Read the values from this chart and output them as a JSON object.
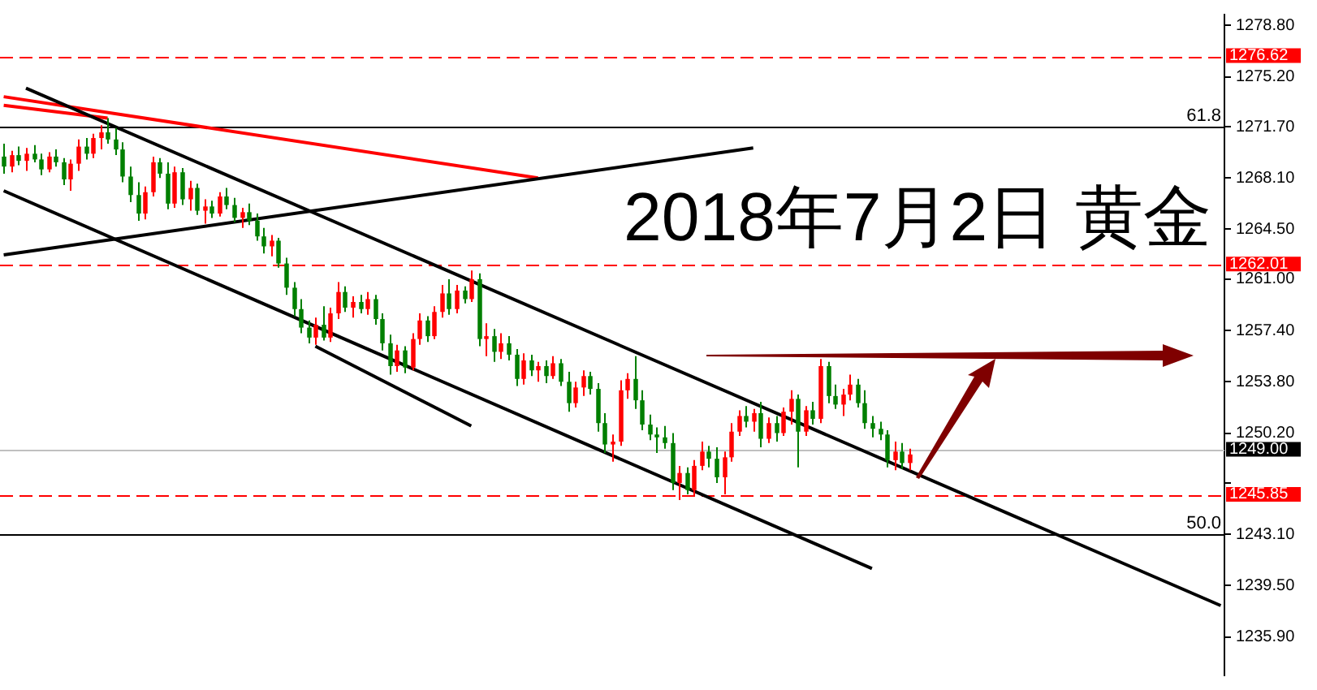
{
  "chart_data": {
    "type": "candlestick",
    "categories": [
      null,
      null,
      null,
      null,
      null,
      null,
      null,
      null,
      null,
      null,
      null,
      null,
      null,
      null,
      null,
      null,
      null,
      null,
      null,
      null,
      null,
      null,
      null,
      null,
      null,
      null,
      null,
      null,
      null,
      null,
      null,
      null,
      null,
      null,
      null,
      null,
      null,
      null,
      null,
      null,
      null,
      null,
      null,
      null,
      null,
      null,
      null,
      null,
      null,
      null,
      null,
      null,
      null,
      null,
      null,
      null,
      null,
      null,
      null,
      null,
      null,
      null,
      null,
      null,
      null,
      null,
      null,
      null,
      null,
      null,
      null,
      null,
      null,
      null,
      null,
      null,
      null,
      null,
      null,
      null,
      null,
      null,
      null,
      null,
      null,
      null,
      null,
      null,
      null,
      null,
      null,
      null,
      null,
      null,
      null,
      null,
      null,
      null,
      null,
      null,
      null,
      null,
      null,
      null,
      null,
      null,
      null,
      null,
      null,
      null,
      null,
      null,
      null,
      null,
      null,
      null,
      null,
      null,
      null,
      null,
      null,
      null,
      null,
      null,
      null,
      null,
      null,
      null,
      null,
      null,
      null,
      null,
      null,
      null,
      null,
      null,
      null,
      null,
      null,
      null,
      null,
      null,
      null,
      null,
      null,
      null,
      null,
      null,
      null,
      null,
      null,
      null,
      null,
      null,
      null,
      null,
      null,
      null,
      null,
      null,
      null,
      null,
      null,
      null,
      null
    ],
    "ohlc": [
      [
        1269.6,
        1270.5,
        1268.4,
        1268.9
      ],
      [
        1268.9,
        1270.0,
        1268.5,
        1269.7
      ],
      [
        1269.7,
        1270.3,
        1269.0,
        1269.3
      ],
      [
        1269.3,
        1270.2,
        1268.6,
        1269.8
      ],
      [
        1269.8,
        1270.4,
        1269.2,
        1269.4
      ],
      [
        1269.4,
        1269.8,
        1268.3,
        1268.7
      ],
      [
        1268.7,
        1269.9,
        1268.5,
        1269.6
      ],
      [
        1269.6,
        1270.1,
        1268.9,
        1269.2
      ],
      [
        1269.2,
        1269.5,
        1267.6,
        1268.0
      ],
      [
        1268.0,
        1269.4,
        1267.2,
        1269.1
      ],
      [
        1269.1,
        1270.8,
        1268.6,
        1270.3
      ],
      [
        1270.3,
        1270.9,
        1269.4,
        1269.8
      ],
      [
        1269.8,
        1271.2,
        1269.5,
        1270.9
      ],
      [
        1270.9,
        1271.8,
        1270.1,
        1271.3
      ],
      [
        1271.3,
        1272.3,
        1270.5,
        1270.8
      ],
      [
        1270.8,
        1271.6,
        1269.7,
        1270.1
      ],
      [
        1270.1,
        1270.6,
        1267.8,
        1268.2
      ],
      [
        1268.2,
        1268.9,
        1266.4,
        1266.9
      ],
      [
        1266.9,
        1267.8,
        1265.1,
        1265.6
      ],
      [
        1265.6,
        1267.5,
        1265.2,
        1267.1
      ],
      [
        1267.1,
        1269.6,
        1266.8,
        1269.2
      ],
      [
        1269.2,
        1269.5,
        1268.1,
        1268.4
      ],
      [
        1268.4,
        1269.2,
        1265.9,
        1266.3
      ],
      [
        1266.3,
        1268.9,
        1266.0,
        1268.5
      ],
      [
        1268.5,
        1268.8,
        1266.2,
        1266.6
      ],
      [
        1266.6,
        1267.9,
        1265.8,
        1267.4
      ],
      [
        1267.4,
        1267.7,
        1265.5,
        1265.8
      ],
      [
        1265.8,
        1266.6,
        1264.9,
        1266.1
      ],
      [
        1266.1,
        1266.5,
        1265.3,
        1265.6
      ],
      [
        1265.6,
        1267.1,
        1265.4,
        1266.8
      ],
      [
        1266.8,
        1267.4,
        1265.9,
        1266.2
      ],
      [
        1266.2,
        1266.7,
        1265.0,
        1265.3
      ],
      [
        1265.3,
        1266.0,
        1264.6,
        1265.7
      ],
      [
        1265.7,
        1266.3,
        1264.8,
        1265.1
      ],
      [
        1265.1,
        1265.6,
        1263.7,
        1264.0
      ],
      [
        1264.0,
        1264.6,
        1262.8,
        1263.3
      ],
      [
        1263.3,
        1264.1,
        1262.6,
        1263.7
      ],
      [
        1263.7,
        1263.9,
        1261.8,
        1262.1
      ],
      [
        1262.1,
        1262.5,
        1259.9,
        1260.4
      ],
      [
        1260.4,
        1260.8,
        1258.4,
        1258.9
      ],
      [
        1258.9,
        1259.6,
        1257.2,
        1257.6
      ],
      [
        1257.6,
        1258.1,
        1256.5,
        1256.9
      ],
      [
        1256.9,
        1258.3,
        1256.4,
        1257.8
      ],
      [
        1257.8,
        1259.1,
        1256.7,
        1256.9
      ],
      [
        1256.9,
        1259.0,
        1256.6,
        1258.6
      ],
      [
        1258.6,
        1260.8,
        1258.2,
        1260.1
      ],
      [
        1260.1,
        1260.5,
        1258.7,
        1259.0
      ],
      [
        1259.0,
        1259.8,
        1258.3,
        1259.4
      ],
      [
        1259.4,
        1259.9,
        1258.6,
        1258.9
      ],
      [
        1258.9,
        1260.1,
        1258.5,
        1259.6
      ],
      [
        1259.6,
        1259.9,
        1257.8,
        1258.2
      ],
      [
        1258.2,
        1258.6,
        1256.0,
        1256.5
      ],
      [
        1256.5,
        1257.1,
        1254.3,
        1254.9
      ],
      [
        1254.9,
        1256.4,
        1254.5,
        1256.0
      ],
      [
        1256.0,
        1256.3,
        1254.4,
        1254.8
      ],
      [
        1254.8,
        1257.2,
        1254.6,
        1256.8
      ],
      [
        1256.8,
        1258.6,
        1256.4,
        1258.1
      ],
      [
        1258.1,
        1258.4,
        1256.6,
        1257.0
      ],
      [
        1257.0,
        1259.1,
        1256.8,
        1258.7
      ],
      [
        1258.7,
        1260.6,
        1258.3,
        1260.0
      ],
      [
        1260.0,
        1261.0,
        1258.5,
        1258.9
      ],
      [
        1258.9,
        1260.6,
        1258.6,
        1260.2
      ],
      [
        1260.2,
        1260.5,
        1259.3,
        1259.6
      ],
      [
        1259.6,
        1261.6,
        1259.4,
        1261.0
      ],
      [
        1261.0,
        1261.4,
        1256.3,
        1256.8
      ],
      [
        1256.8,
        1257.9,
        1255.6,
        1257.0
      ],
      [
        1257.0,
        1257.5,
        1255.2,
        1255.9
      ],
      [
        1255.9,
        1257.2,
        1255.4,
        1256.5
      ],
      [
        1256.5,
        1257.0,
        1255.3,
        1255.7
      ],
      [
        1255.7,
        1256.1,
        1253.5,
        1254.0
      ],
      [
        1254.0,
        1255.8,
        1253.6,
        1255.3
      ],
      [
        1255.3,
        1255.7,
        1254.2,
        1254.6
      ],
      [
        1254.6,
        1255.2,
        1253.8,
        1254.9
      ],
      [
        1254.9,
        1255.3,
        1253.7,
        1254.2
      ],
      [
        1254.2,
        1255.6,
        1254.0,
        1255.1
      ],
      [
        1255.1,
        1255.4,
        1253.5,
        1253.8
      ],
      [
        1253.8,
        1254.5,
        1251.7,
        1252.3
      ],
      [
        1252.3,
        1253.8,
        1252.0,
        1253.4
      ],
      [
        1253.4,
        1254.6,
        1252.8,
        1254.2
      ],
      [
        1254.2,
        1254.5,
        1252.9,
        1253.3
      ],
      [
        1253.3,
        1253.7,
        1250.3,
        1250.9
      ],
      [
        1250.9,
        1251.6,
        1248.8,
        1249.4
      ],
      [
        1249.4,
        1250.1,
        1248.2,
        1249.6
      ],
      [
        1249.6,
        1253.9,
        1249.3,
        1253.2
      ],
      [
        1253.2,
        1254.4,
        1252.6,
        1254.0
      ],
      [
        1254.0,
        1255.6,
        1251.9,
        1252.5
      ],
      [
        1252.5,
        1253.2,
        1250.4,
        1250.8
      ],
      [
        1250.8,
        1251.5,
        1249.7,
        1250.1
      ],
      [
        1250.1,
        1250.6,
        1248.8,
        1249.9
      ],
      [
        1249.9,
        1250.7,
        1249.1,
        1249.5
      ],
      [
        1249.5,
        1250.2,
        1246.2,
        1246.7
      ],
      [
        1246.7,
        1247.9,
        1245.5,
        1247.4
      ],
      [
        1247.4,
        1247.8,
        1245.9,
        1246.2
      ],
      [
        1246.2,
        1248.3,
        1245.8,
        1247.9
      ],
      [
        1247.9,
        1249.6,
        1247.6,
        1248.9
      ],
      [
        1248.9,
        1249.3,
        1247.8,
        1248.4
      ],
      [
        1248.4,
        1249.2,
        1246.7,
        1247.1
      ],
      [
        1247.1,
        1248.9,
        1245.9,
        1248.5
      ],
      [
        1248.5,
        1250.9,
        1248.2,
        1250.3
      ],
      [
        1250.3,
        1251.8,
        1250.0,
        1251.4
      ],
      [
        1251.4,
        1252.1,
        1250.6,
        1251.0
      ],
      [
        1251.0,
        1251.9,
        1250.3,
        1251.6
      ],
      [
        1251.6,
        1252.4,
        1249.2,
        1249.8
      ],
      [
        1249.8,
        1251.3,
        1249.5,
        1250.9
      ],
      [
        1250.9,
        1251.4,
        1249.6,
        1250.2
      ],
      [
        1250.2,
        1252.0,
        1250.0,
        1251.7
      ],
      [
        1251.7,
        1253.2,
        1250.8,
        1252.6
      ],
      [
        1252.6,
        1252.9,
        1247.8,
        1250.3
      ],
      [
        1250.3,
        1252.1,
        1250.0,
        1251.8
      ],
      [
        1251.8,
        1252.4,
        1250.8,
        1251.2
      ],
      [
        1251.2,
        1255.4,
        1250.9,
        1254.9
      ],
      [
        1254.9,
        1255.2,
        1252.3,
        1252.8
      ],
      [
        1252.8,
        1253.6,
        1251.9,
        1252.2
      ],
      [
        1252.2,
        1253.3,
        1251.4,
        1252.9
      ],
      [
        1252.9,
        1254.3,
        1252.5,
        1253.6
      ],
      [
        1253.6,
        1254.0,
        1252.0,
        1252.3
      ],
      [
        1252.3,
        1253.2,
        1250.5,
        1250.9
      ],
      [
        1250.9,
        1251.4,
        1249.9,
        1250.5
      ],
      [
        1250.5,
        1251.0,
        1249.7,
        1250.1
      ],
      [
        1250.1,
        1250.4,
        1247.8,
        1248.3
      ],
      [
        1248.3,
        1249.6,
        1247.6,
        1248.9
      ],
      [
        1248.9,
        1249.5,
        1247.7,
        1248.1
      ],
      [
        1248.1,
        1249.1,
        1247.6,
        1248.7
      ],
      null,
      null,
      null,
      null,
      null,
      null,
      null,
      null,
      null,
      null,
      null,
      null,
      null,
      null,
      null,
      null,
      null,
      null,
      null,
      null,
      null,
      null,
      null,
      null,
      null,
      null,
      null,
      null,
      null,
      null,
      null,
      null,
      null,
      null,
      null,
      null,
      null,
      null,
      null,
      null,
      null,
      null
    ],
    "colors": [
      "#007f00",
      "#ff0000",
      "#007f00",
      "#ff0000",
      "#007f00",
      "#007f00",
      "#ff0000",
      "#007f00",
      "#007f00",
      "#ff0000",
      "#ff0000",
      "#007f00",
      "#ff0000",
      "#ff0000",
      "#007f00",
      "#007f00",
      "#007f00",
      "#007f00",
      "#007f00",
      "#ff0000",
      "#ff0000",
      "#007f00",
      "#007f00",
      "#ff0000",
      "#007f00",
      "#ff0000",
      "#007f00",
      "#ff0000",
      "#007f00",
      "#ff0000",
      "#007f00",
      "#007f00",
      "#ff0000",
      "#007f00",
      "#007f00",
      "#007f00",
      "#ff0000",
      "#007f00",
      "#007f00",
      "#007f00",
      "#007f00",
      "#007f00",
      "#ff0000",
      "#007f00",
      "#ff0000",
      "#ff0000",
      "#007f00",
      "#ff0000",
      "#007f00",
      "#ff0000",
      "#007f00",
      "#007f00",
      "#007f00",
      "#ff0000",
      "#007f00",
      "#ff0000",
      "#ff0000",
      "#007f00",
      "#ff0000",
      "#ff0000",
      "#007f00",
      "#ff0000",
      "#007f00",
      "#ff0000",
      "#007f00",
      "#ff0000",
      "#007f00",
      "#ff0000",
      "#007f00",
      "#007f00",
      "#ff0000",
      "#007f00",
      "#ff0000",
      "#007f00",
      "#ff0000",
      "#007f00",
      "#007f00",
      "#ff0000",
      "#ff0000",
      "#007f00",
      "#007f00",
      "#007f00",
      "#ff0000",
      "#ff0000",
      "#ff0000",
      "#007f00",
      "#007f00",
      "#007f00",
      "#007f00",
      "#007f00",
      "#007f00",
      "#ff0000",
      "#007f00",
      "#ff0000",
      "#ff0000",
      "#007f00",
      "#007f00",
      "#ff0000",
      "#ff0000",
      "#ff0000",
      "#007f00",
      "#ff0000",
      "#007f00",
      "#ff0000",
      "#007f00",
      "#ff0000",
      "#ff0000",
      "#007f00",
      "#ff0000",
      "#007f00",
      "#ff0000",
      "#007f00",
      "#007f00",
      "#ff0000",
      "#ff0000",
      "#007f00",
      "#007f00",
      "#007f00",
      "#007f00",
      "#007f00",
      "#ff0000",
      "#007f00",
      "#ff0000",
      null,
      null,
      null,
      null,
      null,
      null,
      null,
      null,
      null,
      null,
      null,
      null,
      null,
      null,
      null,
      null,
      null,
      null,
      null,
      null,
      null,
      null,
      null,
      null,
      null,
      null,
      null,
      null,
      null,
      null,
      null,
      null,
      null,
      null,
      null,
      null,
      null,
      null,
      null,
      null,
      null,
      null
    ],
    "series": [
      {
        "type": "line",
        "color": "#000000",
        "values": [
          null,
          null,
          null,
          1274.4,
          null,
          null,
          null,
          null,
          null,
          null,
          null,
          null,
          null,
          null,
          null,
          null,
          null,
          null,
          null,
          null,
          null,
          null,
          null,
          null,
          null,
          null,
          null,
          null,
          null,
          null,
          null,
          null,
          null,
          null,
          null,
          null,
          null,
          null,
          null,
          null,
          null,
          null,
          null,
          null,
          null,
          null,
          null,
          null,
          null,
          null,
          null,
          null,
          null,
          null,
          null,
          null,
          null,
          null,
          null,
          null,
          null,
          null,
          null,
          null,
          null,
          null,
          null,
          null,
          null,
          null,
          null,
          null,
          null,
          null,
          null,
          null,
          null,
          null,
          null,
          null,
          null,
          null,
          null,
          null,
          null,
          null,
          null,
          null,
          null,
          null,
          null,
          null,
          null,
          null,
          null,
          null,
          null,
          null,
          null,
          null,
          null,
          null,
          null,
          null,
          null,
          null,
          null,
          null,
          null,
          null,
          null,
          null,
          null,
          null,
          null,
          null,
          null,
          null,
          null,
          null,
          null,
          null,
          null,
          null,
          null,
          null,
          null,
          null,
          null,
          null,
          null,
          null,
          null,
          null,
          null,
          null,
          null,
          null,
          null,
          null,
          null,
          null,
          null,
          null,
          null,
          null,
          null,
          null,
          null,
          null,
          null,
          null,
          null,
          null,
          null,
          null,
          null,
          null,
          null,
          null,
          null,
          null,
          null,
          null,
          1238.1
        ]
      },
      {
        "type": "line",
        "color": "#000000",
        "values": [
          1267.2,
          null,
          null,
          null,
          null,
          null,
          null,
          null,
          null,
          null,
          null,
          null,
          null,
          null,
          null,
          null,
          null,
          null,
          null,
          null,
          null,
          null,
          null,
          null,
          null,
          null,
          null,
          null,
          null,
          null,
          null,
          null,
          null,
          null,
          null,
          null,
          null,
          null,
          null,
          null,
          null,
          null,
          null,
          null,
          null,
          null,
          null,
          null,
          null,
          null,
          null,
          null,
          null,
          null,
          null,
          null,
          null,
          null,
          null,
          null,
          null,
          null,
          null,
          null,
          null,
          null,
          null,
          null,
          null,
          null,
          null,
          null,
          null,
          null,
          null,
          null,
          null,
          null,
          null,
          null,
          null,
          null,
          null,
          null,
          null,
          null,
          null,
          null,
          null,
          null,
          null,
          null,
          null,
          null,
          null,
          null,
          null,
          null,
          null,
          null,
          null,
          null,
          null,
          null,
          null,
          null,
          null,
          null,
          null,
          null,
          null,
          null,
          null,
          null,
          null,
          null,
          null,
          1240.7,
          null,
          null,
          null,
          null,
          null,
          null,
          null,
          null,
          null,
          null,
          null,
          null,
          null,
          null,
          null,
          null,
          null,
          null,
          null,
          null,
          null,
          null,
          null,
          null,
          null,
          null,
          null,
          null,
          null,
          null,
          null,
          null,
          null,
          null,
          null,
          null,
          null,
          null,
          null,
          null,
          null,
          null,
          null,
          null,
          null,
          null,
          null
        ]
      },
      {
        "type": "line",
        "color": "#000000",
        "values": [
          null,
          null,
          null,
          null,
          null,
          null,
          null,
          null,
          null,
          null,
          null,
          null,
          null,
          null,
          null,
          null,
          null,
          null,
          null,
          null,
          null,
          null,
          null,
          null,
          null,
          null,
          null,
          null,
          null,
          null,
          null,
          null,
          null,
          null,
          null,
          null,
          null,
          null,
          null,
          null,
          null,
          null,
          1256.3,
          null,
          null,
          null,
          null,
          null,
          null,
          null,
          null,
          null,
          null,
          null,
          null,
          null,
          null,
          null,
          null,
          null,
          null,
          null,
          null,
          1250.7,
          null,
          null,
          null,
          null,
          null,
          null,
          null,
          null,
          null,
          null,
          null,
          null,
          null,
          null,
          null,
          null,
          null,
          null,
          null,
          null,
          null,
          null,
          null,
          null,
          null,
          null,
          null,
          null,
          null,
          null,
          null,
          null,
          null,
          null,
          null,
          null,
          null,
          null,
          null,
          null,
          null,
          null,
          null,
          null,
          null,
          null,
          null,
          null,
          null,
          null,
          null,
          null,
          null,
          null,
          null,
          null,
          null,
          null,
          null,
          null,
          null,
          null,
          null,
          null,
          null,
          null,
          null,
          null,
          null,
          null,
          null,
          null,
          null,
          null,
          null,
          null,
          null,
          null,
          null,
          null,
          null,
          null,
          null,
          null,
          null,
          null,
          null,
          null,
          null,
          null,
          null,
          null,
          null,
          null,
          null,
          null,
          null,
          null,
          null,
          null,
          null
        ]
      },
      {
        "type": "line",
        "color": "#000000",
        "values": [
          1262.7,
          null,
          null,
          null,
          null,
          null,
          null,
          null,
          null,
          null,
          null,
          null,
          null,
          null,
          null,
          null,
          null,
          null,
          null,
          null,
          null,
          null,
          null,
          null,
          null,
          null,
          null,
          null,
          null,
          null,
          null,
          null,
          null,
          null,
          null,
          null,
          null,
          null,
          null,
          null,
          null,
          null,
          null,
          null,
          null,
          null,
          null,
          null,
          null,
          null,
          null,
          null,
          null,
          null,
          null,
          null,
          null,
          null,
          null,
          null,
          null,
          null,
          null,
          null,
          null,
          null,
          null,
          null,
          null,
          null,
          null,
          null,
          null,
          null,
          null,
          null,
          null,
          null,
          null,
          null,
          null,
          null,
          null,
          null,
          null,
          null,
          null,
          null,
          null,
          null,
          null,
          null,
          null,
          null,
          null,
          null,
          null,
          null,
          null,
          null,
          null,
          1270.2,
          null,
          null,
          null,
          null,
          null,
          null,
          null,
          null,
          null,
          null,
          null,
          null,
          null,
          null,
          null,
          null,
          null,
          null,
          null,
          null,
          null,
          null,
          null,
          null,
          null,
          null,
          null,
          null,
          null,
          null,
          null,
          null,
          null,
          null,
          null,
          null,
          null,
          null,
          null,
          null,
          null,
          null,
          null,
          null,
          null,
          null,
          null,
          null,
          null,
          null,
          null,
          null,
          null,
          null,
          null,
          null,
          null,
          null,
          null,
          null,
          null,
          null,
          null
        ]
      },
      {
        "type": "line",
        "color": "#ff0000",
        "values": [
          1273.8,
          null,
          null,
          null,
          null,
          null,
          null,
          null,
          null,
          null,
          null,
          null,
          null,
          null,
          null,
          null,
          null,
          null,
          null,
          null,
          null,
          null,
          null,
          null,
          null,
          null,
          null,
          null,
          null,
          null,
          null,
          null,
          null,
          null,
          null,
          null,
          null,
          null,
          null,
          null,
          null,
          null,
          null,
          null,
          null,
          null,
          null,
          null,
          null,
          null,
          null,
          null,
          null,
          null,
          null,
          null,
          null,
          null,
          null,
          null,
          null,
          null,
          null,
          null,
          null,
          null,
          null,
          null,
          null,
          null,
          null,
          null,
          1268.1,
          null,
          null,
          null,
          null,
          null,
          null,
          null,
          null,
          null,
          null,
          null,
          null,
          null,
          null,
          null,
          null,
          null,
          null,
          null,
          null,
          null,
          null,
          null,
          null,
          null,
          null,
          null,
          null,
          null,
          null,
          null,
          null,
          null,
          null,
          null,
          null,
          null,
          null,
          null,
          null,
          null,
          null,
          null,
          null,
          null,
          null,
          null,
          null,
          null,
          null,
          null,
          null,
          null,
          null,
          null,
          null,
          null,
          null,
          null,
          null,
          null,
          null,
          null,
          null,
          null,
          null,
          null,
          null,
          null,
          null,
          null,
          null,
          null,
          null,
          null,
          null,
          null,
          null,
          null,
          null,
          null,
          null,
          null,
          null,
          null,
          null,
          null,
          null,
          null,
          null,
          null,
          null
        ]
      },
      {
        "type": "line",
        "color": "#ff0000",
        "values": [
          1273.2,
          null,
          null,
          null,
          null,
          null,
          null,
          null,
          null,
          null,
          null,
          null,
          null,
          null,
          1272.3,
          null,
          null,
          null,
          null,
          null,
          null,
          null,
          null,
          null,
          null,
          null,
          null,
          null,
          null,
          null,
          null,
          null,
          null,
          null,
          null,
          null,
          null,
          null,
          null,
          null,
          null,
          null,
          null,
          null,
          null,
          null,
          null,
          null,
          null,
          null,
          null,
          null,
          null,
          null,
          null,
          null,
          null,
          null,
          null,
          null,
          null,
          null,
          null,
          null,
          null,
          null,
          null,
          null,
          null,
          null,
          null,
          null,
          null,
          null,
          null,
          null,
          null,
          null,
          null,
          null,
          null,
          null,
          null,
          null,
          null,
          null,
          null,
          null,
          null,
          null,
          null,
          null,
          null,
          null,
          null,
          null,
          null,
          null,
          null,
          null,
          null,
          null,
          null,
          null,
          null,
          null,
          null,
          null,
          null,
          null,
          null,
          null,
          null,
          null,
          null,
          null,
          null,
          null,
          null,
          null,
          null,
          null,
          null,
          null,
          null,
          null,
          null,
          null,
          null,
          null,
          null,
          null,
          null,
          null,
          null,
          null,
          null,
          null,
          null,
          null,
          null,
          null,
          null,
          null,
          null,
          null,
          null,
          null,
          null,
          null,
          null,
          null,
          null,
          null,
          null,
          null,
          null,
          null,
          null,
          null,
          null,
          null,
          null,
          null,
          null
        ]
      }
    ],
    "ylim": [
      1233.2,
      1279.56
    ],
    "yticks": [
      {
        "value": 1278.8,
        "label": "1278.80"
      },
      {
        "value": 1275.2,
        "label": "1275.20"
      },
      {
        "value": 1271.7,
        "label": "1271.70"
      },
      {
        "value": 1268.1,
        "label": "1268.10"
      },
      {
        "value": 1264.5,
        "label": "1264.50"
      },
      {
        "value": 1261,
        "label": "1261.00"
      },
      {
        "value": 1257.4,
        "label": "1257.40"
      },
      {
        "value": 1253.8,
        "label": "1253.80"
      },
      {
        "value": 1250.2,
        "label": "1250.20"
      },
      {
        "value": 1246.7,
        "label": null
      },
      {
        "value": 1243.1,
        "label": "1243.10"
      },
      {
        "value": 1239.5,
        "label": "1239.50"
      },
      {
        "value": 1235.9,
        "label": "1235.90"
      }
    ],
    "tick_labels": "y",
    "ref_lines": [
      {
        "axis": "y",
        "value": 1276.62,
        "label": "1276.62",
        "color": "#ff0000",
        "line_style": "dashed"
      },
      {
        "axis": "y",
        "value": 1262.01,
        "label": "1262.01",
        "color": "#ff0000",
        "line_style": "dashed"
      },
      {
        "axis": "y",
        "value": 1245.85,
        "label": "1245.85",
        "color": "#ff0000",
        "line_style": "dashed"
      },
      {
        "axis": "y",
        "value": 1249.0,
        "label": "1249.00",
        "color": "#c0c0c0",
        "line_style": "solid"
      },
      {
        "axis": "y",
        "value": 1271.7,
        "color": "#000000",
        "line_style": "solid"
      },
      {
        "axis": "y",
        "value": 1243.1,
        "color": "#000000",
        "line_style": "solid"
      }
    ],
    "annotations": [
      "2018年7月2日 黄金",
      {
        "text": "61.8",
        "y": 1271.7
      },
      {
        "text": "50.0",
        "y": 1243.1
      }
    ]
  }
}
